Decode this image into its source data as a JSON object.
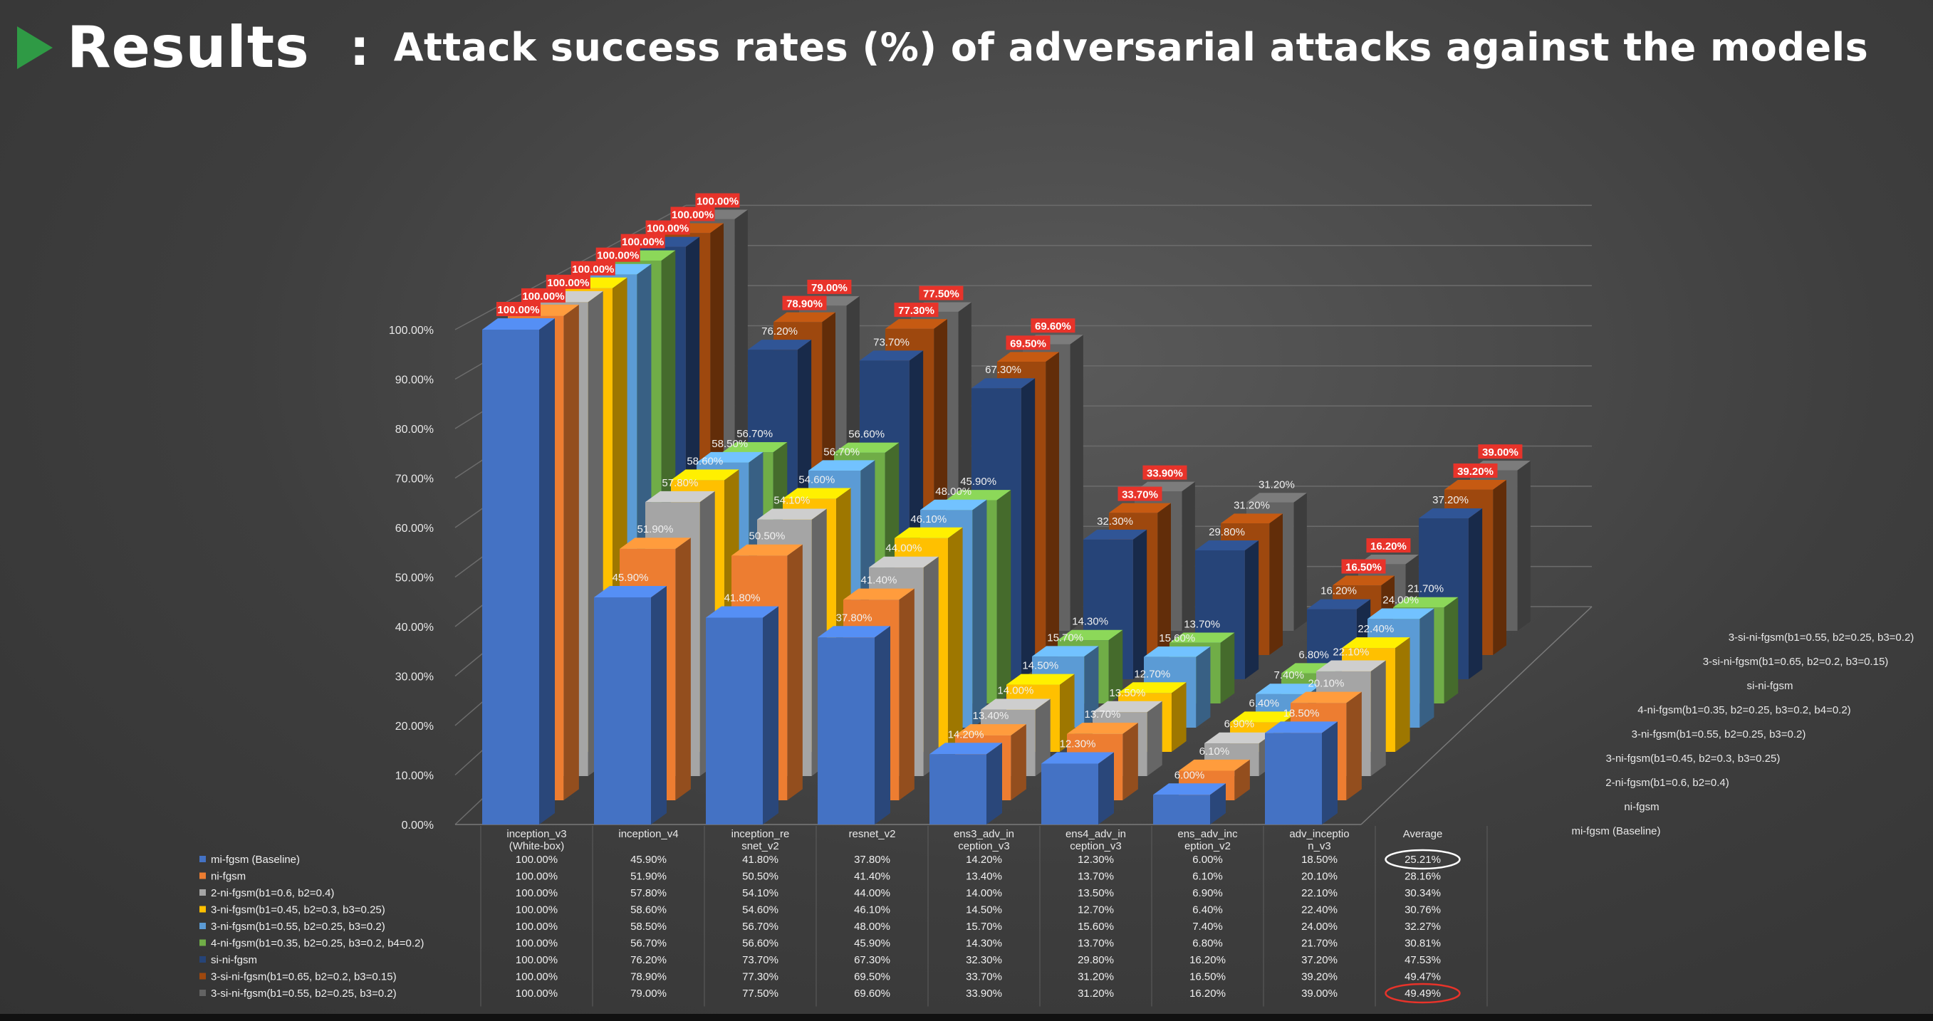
{
  "slide": {
    "title": "Results",
    "colon": ":",
    "subtitle": "Attack success rates (%) of adversarial attacks against the models"
  },
  "chart_data": {
    "type": "bar",
    "style": "3d-clustered-column",
    "title": "Attack success rates (%) of adversarial attacks against the models",
    "ylim": [
      0,
      100
    ],
    "ytick_labels": [
      "0.00%",
      "10.00%",
      "20.00%",
      "30.00%",
      "40.00%",
      "50.00%",
      "60.00%",
      "70.00%",
      "80.00%",
      "90.00%",
      "100.00%"
    ],
    "categories": [
      [
        "inception_v3",
        "(White-box)"
      ],
      [
        "inception_v4"
      ],
      [
        "inception_re",
        "snet_v2"
      ],
      [
        "resnet_v2"
      ],
      [
        "ens3_adv_in",
        "ception_v3"
      ],
      [
        "ens4_adv_in",
        "ception_v3"
      ],
      [
        "ens_adv_inc",
        "eption_v2"
      ],
      [
        "adv_inceptio",
        "n_v3"
      ]
    ],
    "average_header": "Average",
    "series": [
      {
        "name": "mi-fgsm (Baseline)",
        "color": "#4472c4",
        "values": [
          100.0,
          45.9,
          41.8,
          37.8,
          14.2,
          12.3,
          6.0,
          18.5
        ],
        "average": "25.21%"
      },
      {
        "name": "ni-fgsm",
        "color": "#ed7d31",
        "values": [
          100.0,
          51.9,
          50.5,
          41.4,
          13.4,
          13.7,
          6.1,
          20.1
        ],
        "average": "28.16%"
      },
      {
        "name": "2-ni-fgsm(b1=0.6, b2=0.4)",
        "color": "#a5a5a5",
        "values": [
          100.0,
          57.8,
          54.1,
          44.0,
          14.0,
          13.5,
          6.9,
          22.1
        ],
        "average": "30.34%"
      },
      {
        "name": "3-ni-fgsm(b1=0.45, b2=0.3, b3=0.25)",
        "color": "#ffc000",
        "values": [
          100.0,
          58.6,
          54.6,
          46.1,
          14.5,
          12.7,
          6.4,
          22.4
        ],
        "average": "30.76%"
      },
      {
        "name": "3-ni-fgsm(b1=0.55, b2=0.25, b3=0.2)",
        "color": "#5b9bd5",
        "values": [
          100.0,
          58.5,
          56.7,
          48.0,
          15.7,
          15.6,
          7.4,
          24.0
        ],
        "average": "32.27%"
      },
      {
        "name": "4-ni-fgsm(b1=0.35, b2=0.25, b3=0.2, b4=0.2)",
        "color": "#70ad47",
        "values": [
          100.0,
          56.7,
          56.6,
          45.9,
          14.3,
          13.7,
          6.8,
          21.7
        ],
        "average": "30.81%"
      },
      {
        "name": "si-ni-fgsm",
        "color": "#264478",
        "values": [
          100.0,
          76.2,
          73.7,
          67.3,
          32.3,
          29.8,
          16.2,
          37.2
        ],
        "average": "47.53%"
      },
      {
        "name": "3-si-ni-fgsm(b1=0.65, b2=0.2, b3=0.15)",
        "color": "#9e480e",
        "values": [
          100.0,
          78.9,
          77.3,
          69.5,
          33.7,
          31.2,
          16.5,
          39.2
        ],
        "average": "49.47%"
      },
      {
        "name": "3-si-ni-fgsm(b1=0.55, b2=0.25, b3=0.2)",
        "color": "#636363",
        "values": [
          100.0,
          79.0,
          77.5,
          69.6,
          33.9,
          31.2,
          16.2,
          39.0
        ],
        "average": "49.49%"
      }
    ],
    "highlight_averages": [
      "25.21%",
      "49.49%"
    ],
    "highlight_color": "#e8332a"
  }
}
